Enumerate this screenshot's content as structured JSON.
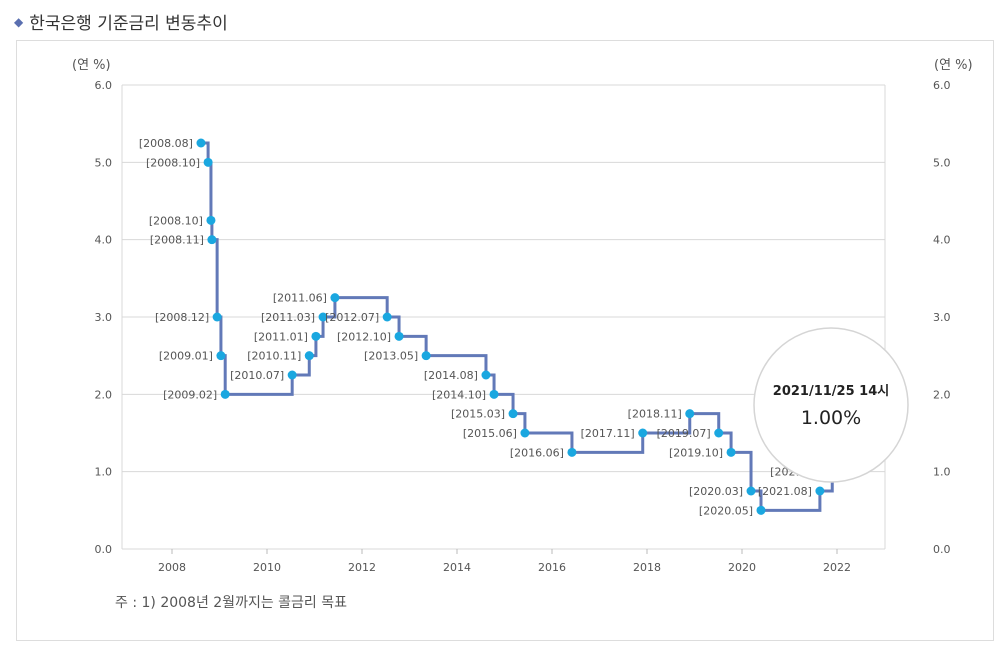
{
  "title": "한국은행 기준금리 변동추이",
  "note": "주 : 1) 2008년 2월까지는 콜금리 목표",
  "tooltip": {
    "date": "2021/11/25 14시",
    "value": "1.00%"
  },
  "chart_data": {
    "type": "line",
    "step": "after",
    "ylabel_left": "(연 %)",
    "ylabel_right": "(연 %)",
    "ylim": [
      0,
      6
    ],
    "xlim": [
      2007,
      2023
    ],
    "y_ticks": [
      "0.0",
      "1.0",
      "2.0",
      "3.0",
      "4.0",
      "5.0",
      "6.0"
    ],
    "x_ticks": [
      "2008",
      "2010",
      "2012",
      "2014",
      "2016",
      "2018",
      "2020",
      "2022"
    ],
    "grid": true,
    "line_color": "#6279b8",
    "marker_color": "#1aa7e0",
    "points": [
      {
        "label": "[2008.08]",
        "value": 5.25
      },
      {
        "label": "[2008.10]",
        "value": 5.0
      },
      {
        "label": "[2008.10]",
        "value": 4.25
      },
      {
        "label": "[2008.11]",
        "value": 4.0
      },
      {
        "label": "[2008.12]",
        "value": 3.0
      },
      {
        "label": "[2009.01]",
        "value": 2.5
      },
      {
        "label": "[2009.02]",
        "value": 2.0
      },
      {
        "label": "[2010.07]",
        "value": 2.25
      },
      {
        "label": "[2010.11]",
        "value": 2.5
      },
      {
        "label": "[2011.01]",
        "value": 2.75
      },
      {
        "label": "[2011.03]",
        "value": 3.0
      },
      {
        "label": "[2011.06]",
        "value": 3.25
      },
      {
        "label": "[2012.07]",
        "value": 3.0
      },
      {
        "label": "[2012.10]",
        "value": 2.75
      },
      {
        "label": "[2013.05]",
        "value": 2.5
      },
      {
        "label": "[2014.08]",
        "value": 2.25
      },
      {
        "label": "[2014.10]",
        "value": 2.0
      },
      {
        "label": "[2015.03]",
        "value": 1.75
      },
      {
        "label": "[2015.06]",
        "value": 1.5
      },
      {
        "label": "[2016.06]",
        "value": 1.25
      },
      {
        "label": "[2017.11]",
        "value": 1.5
      },
      {
        "label": "[2018.11]",
        "value": 1.75
      },
      {
        "label": "[2019.07]",
        "value": 1.5
      },
      {
        "label": "[2019.10]",
        "value": 1.25
      },
      {
        "label": "[2020.03]",
        "value": 0.75
      },
      {
        "label": "[2020.05]",
        "value": 0.5
      },
      {
        "label": "[2021.08]",
        "value": 0.75
      },
      {
        "label": "[2021.11]",
        "value": 1.0
      }
    ],
    "x_positions": [
      2008.61,
      2008.76,
      2008.82,
      2008.84,
      2008.95,
      2009.03,
      2009.12,
      2010.53,
      2010.89,
      2011.03,
      2011.18,
      2011.43,
      2012.53,
      2012.78,
      2013.35,
      2014.61,
      2014.78,
      2015.18,
      2015.43,
      2016.42,
      2017.91,
      2018.9,
      2019.51,
      2019.77,
      2020.19,
      2020.4,
      2021.64,
      2021.9
    ]
  }
}
